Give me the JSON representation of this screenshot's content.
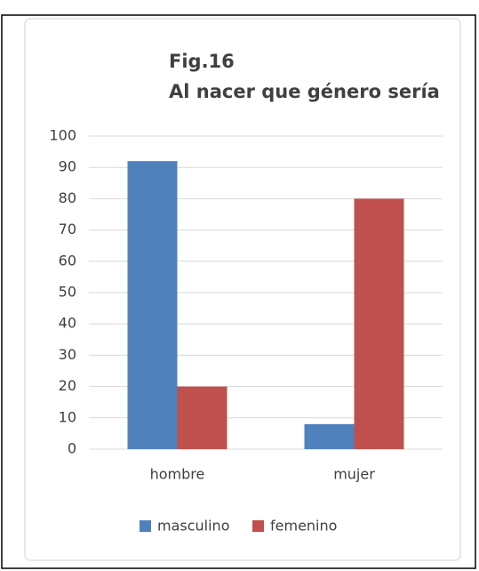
{
  "chart_data": {
    "type": "bar",
    "title": "Fig.16",
    "subtitle": "Al nacer que género sería",
    "categories": [
      "hombre",
      "mujer"
    ],
    "series": [
      {
        "name": "masculino",
        "color": "#4f81bd",
        "values": [
          92,
          8
        ]
      },
      {
        "name": "femenino",
        "color": "#c0504d",
        "values": [
          20,
          80
        ]
      }
    ],
    "ylim": [
      0,
      100
    ],
    "yticks": [
      0,
      10,
      20,
      30,
      40,
      50,
      60,
      70,
      80,
      90,
      100
    ],
    "grid": true,
    "legend": "bottom"
  }
}
